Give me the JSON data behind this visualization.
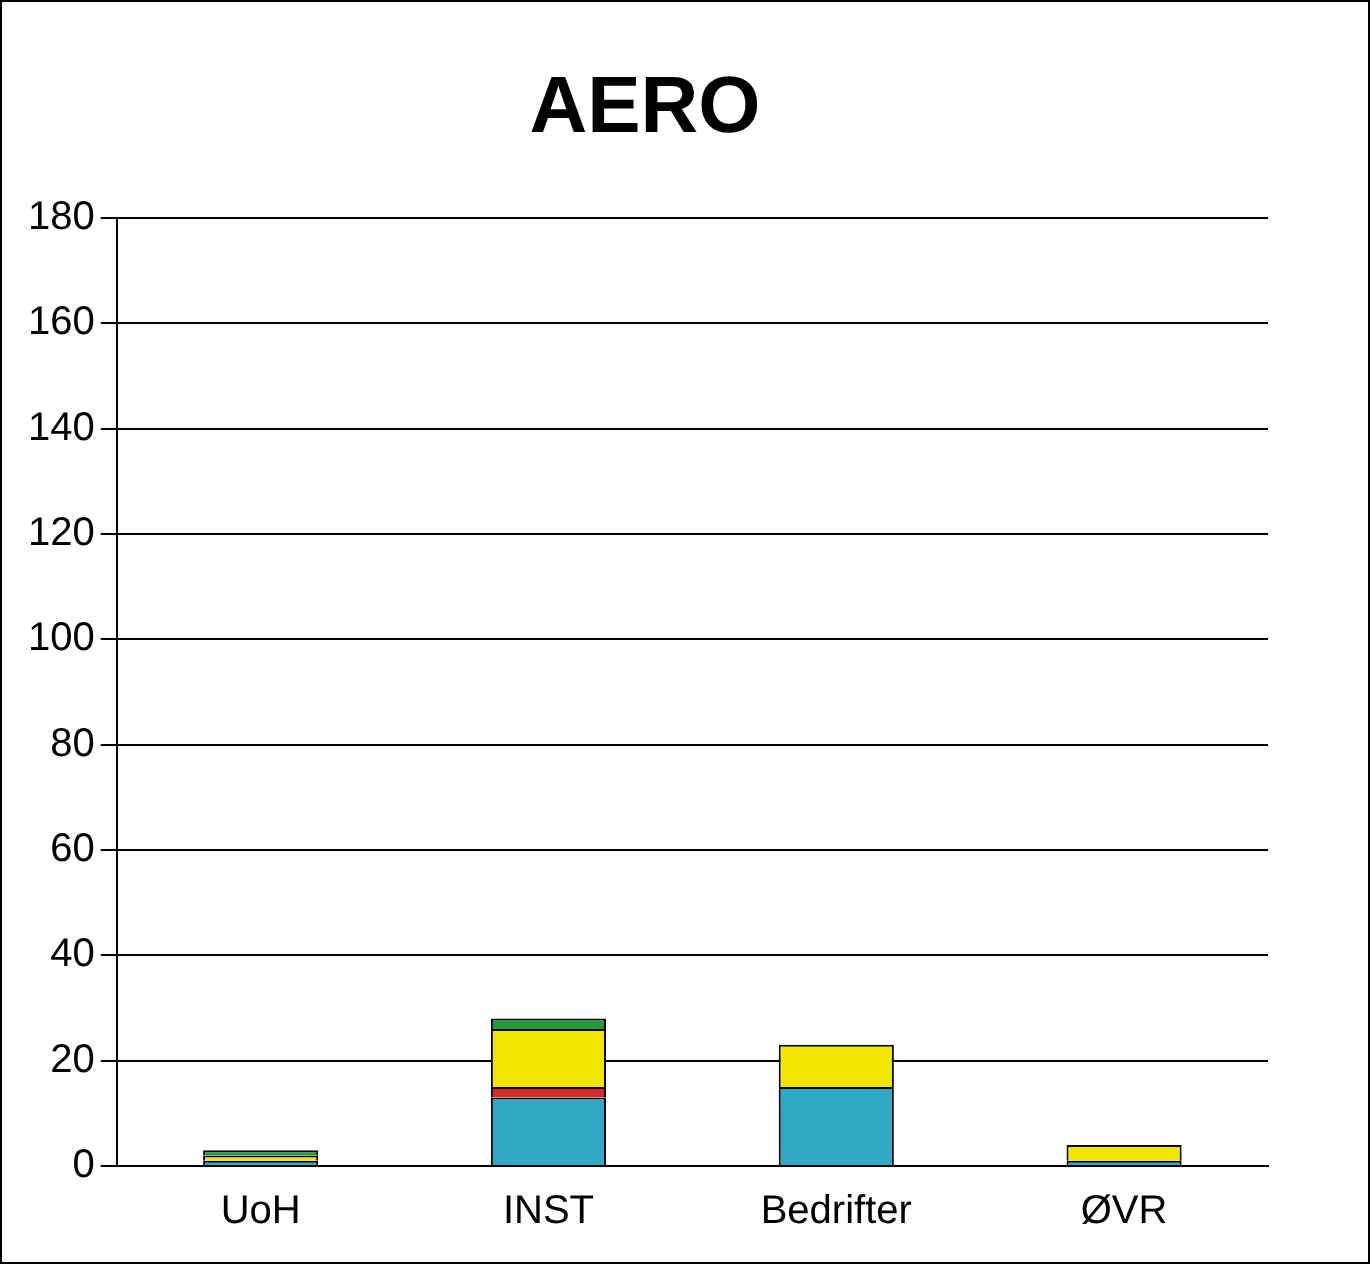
{
  "chart_data": {
    "type": "bar",
    "title": "AERO",
    "categories": [
      "UoH",
      "INST",
      "Bedrifter",
      "ØVR"
    ],
    "stacked": true,
    "series": [
      {
        "color": "#31a8c6",
        "values": [
          1,
          13,
          15,
          1
        ]
      },
      {
        "color": "#d42a2a",
        "values": [
          0,
          2,
          0,
          0
        ]
      },
      {
        "color": "#f0e600",
        "values": [
          1,
          11,
          8,
          3
        ]
      },
      {
        "color": "#22993f",
        "values": [
          1,
          2,
          0,
          0
        ]
      }
    ],
    "ylim": [
      0,
      180
    ],
    "yticks": [
      0,
      20,
      40,
      60,
      80,
      100,
      120,
      140,
      160,
      180
    ],
    "grid": "y",
    "legend": false
  }
}
